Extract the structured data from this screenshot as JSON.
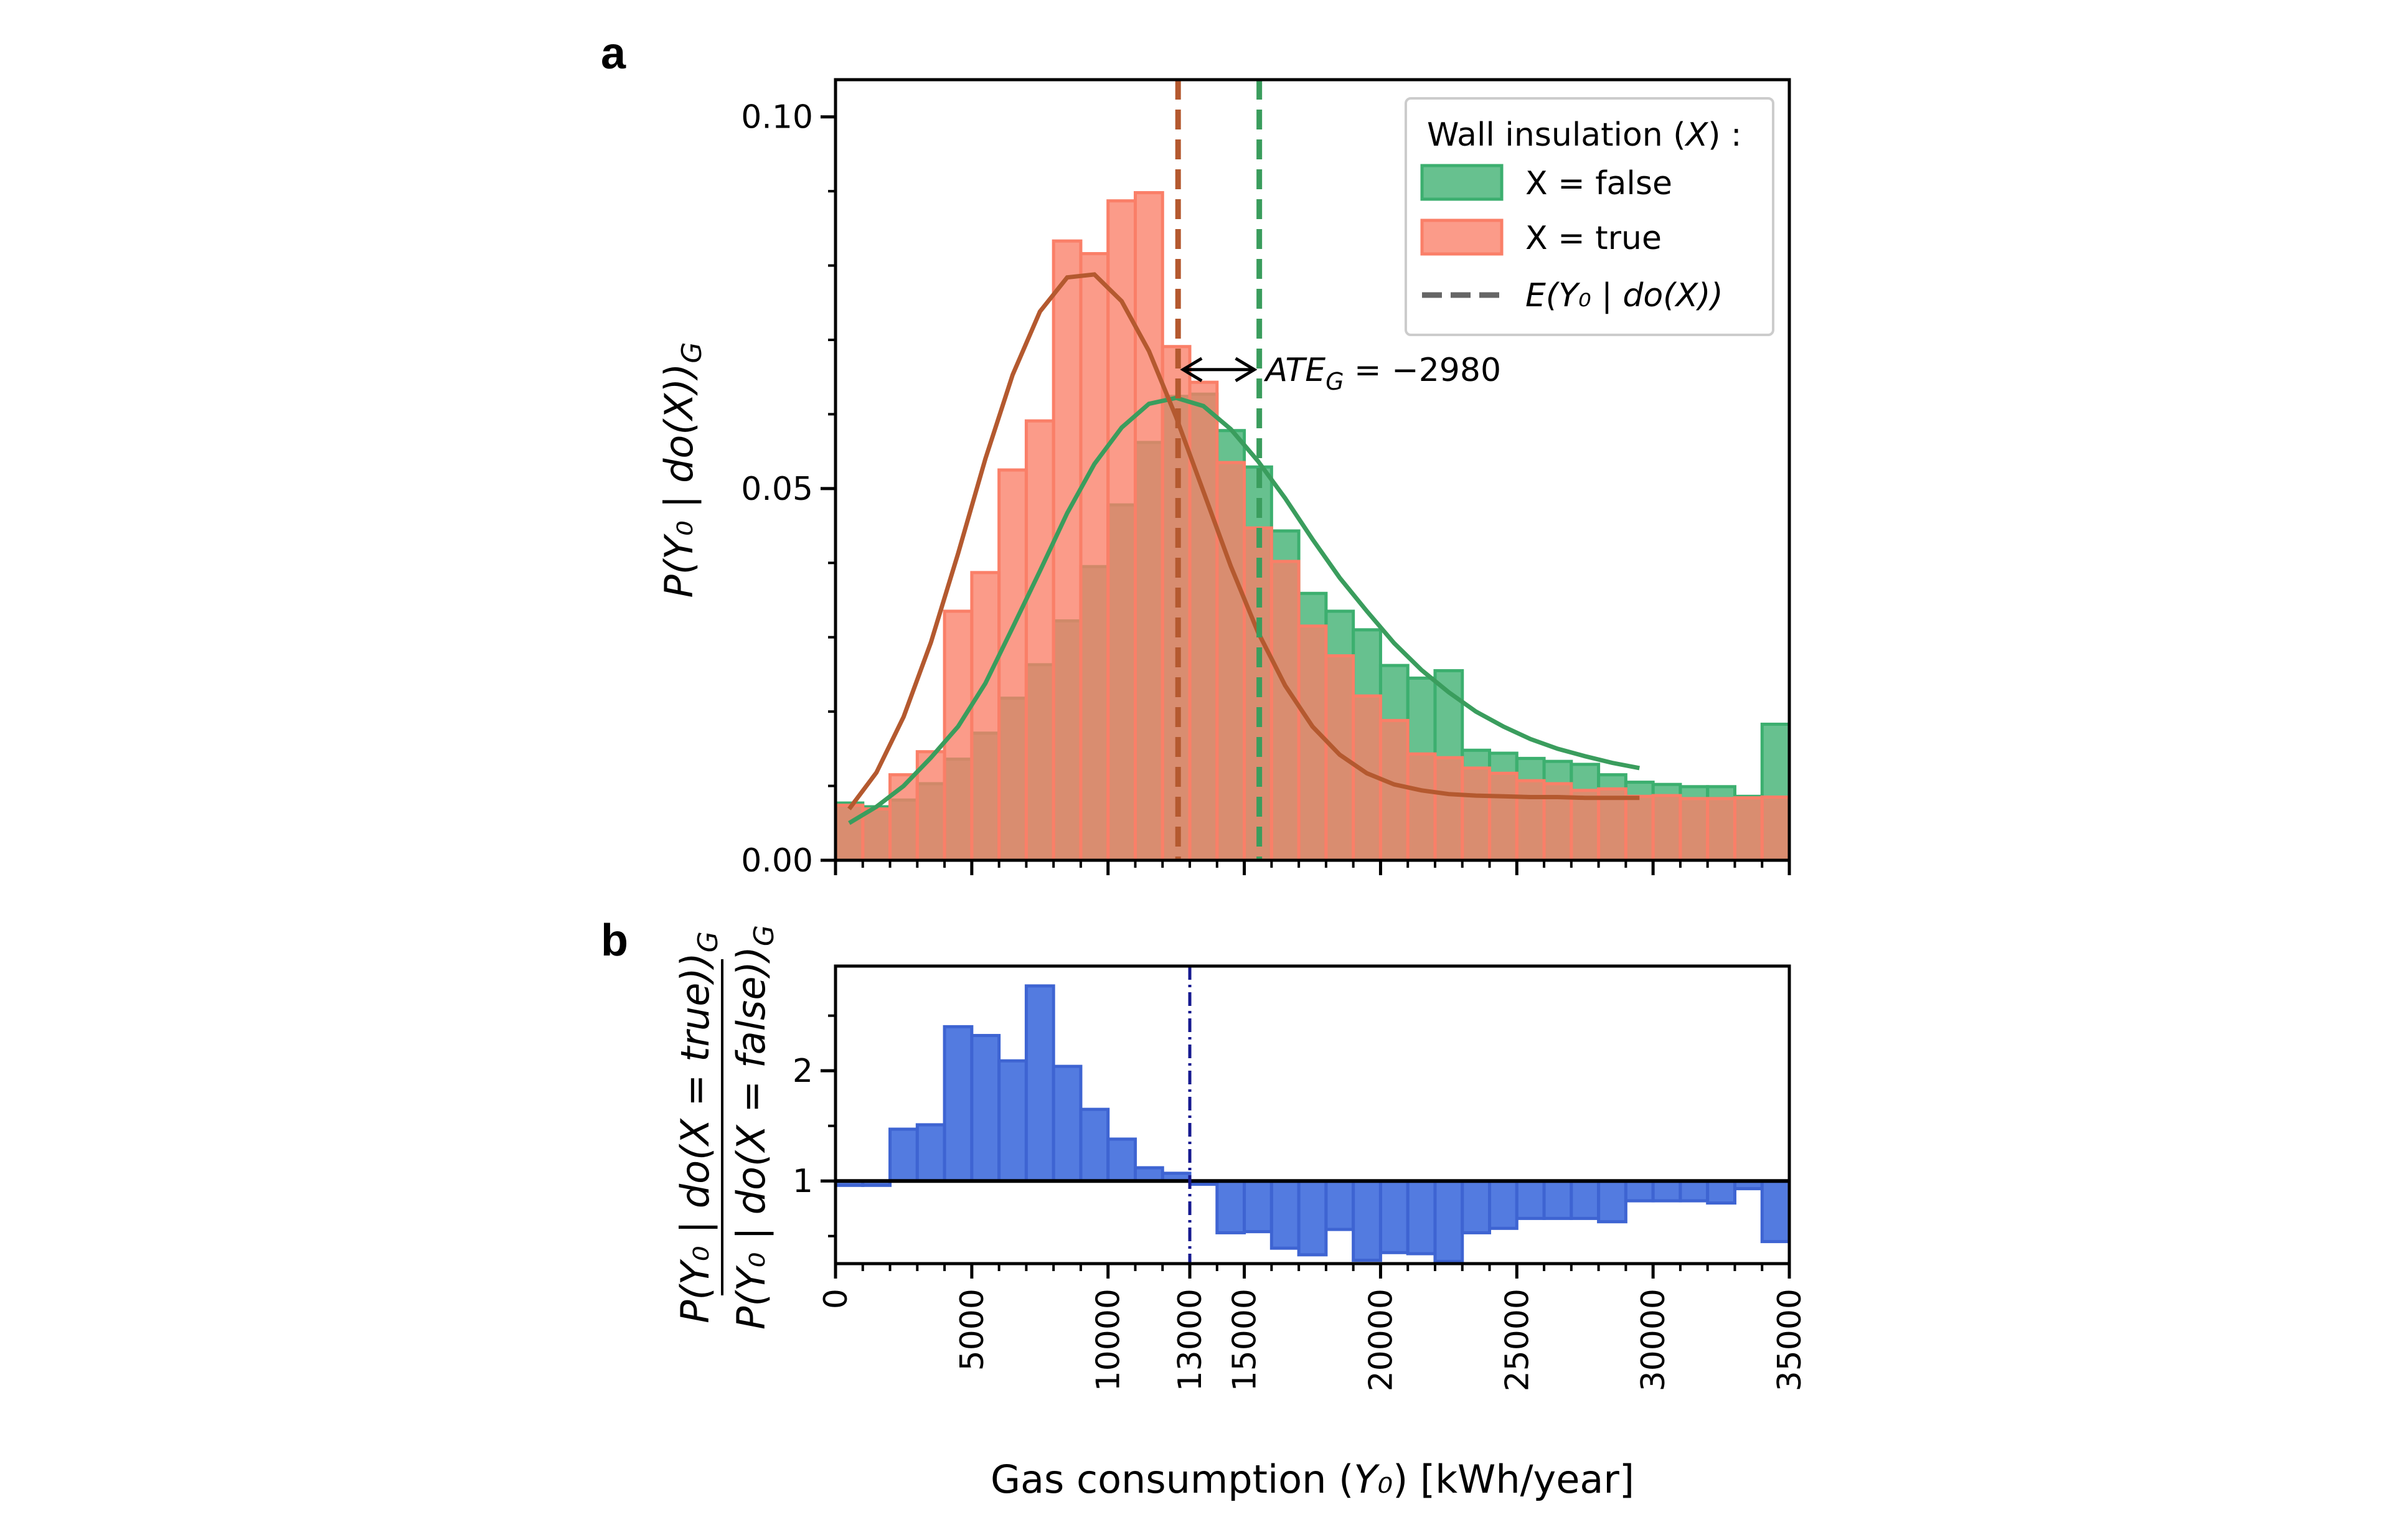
{
  "figure": {
    "panel_a_label": "a",
    "panel_b_label": "b",
    "ate_annotation": {
      "name": "ATE",
      "sub": "G",
      "value": " = −2980"
    }
  },
  "chart_data": [
    {
      "type": "bar",
      "panel": "a",
      "xlim": [
        0,
        35000
      ],
      "ylim": [
        0,
        0.105
      ],
      "yticks": [
        0.0,
        0.05,
        0.1
      ],
      "ytick_labels": [
        "0.00",
        "0.05",
        "0.10"
      ],
      "ylabel": {
        "text": "P(Y₀ | do(X))",
        "sub": "G"
      },
      "bin_width": 1000,
      "bin_start": 0,
      "legend": {
        "placement": "top-right",
        "title": {
          "pre": "Wall insulation (",
          "var": "X",
          "post": ") :"
        },
        "entries": [
          "X = false",
          "X = true",
          "E(Y₀ | do(X))"
        ]
      },
      "colors": {
        "false_fill": "#3caf6f",
        "true_fill": "#fa7f68",
        "false_line": "#3a9d5d",
        "true_line": "#b4592f",
        "mean_legend": "#666666"
      },
      "series": [
        {
          "name": "X = false",
          "values": [
            0.0077,
            0.0072,
            0.0081,
            0.0103,
            0.0136,
            0.0171,
            0.0218,
            0.0263,
            0.0322,
            0.0395,
            0.0478,
            0.0562,
            0.0624,
            0.0627,
            0.0578,
            0.0529,
            0.0443,
            0.0359,
            0.0335,
            0.031,
            0.0262,
            0.0245,
            0.0255,
            0.0148,
            0.0144,
            0.0137,
            0.0133,
            0.0129,
            0.0115,
            0.0105,
            0.0102,
            0.0099,
            0.0099,
            0.0086,
            0.0183
          ],
          "mean": 15550,
          "fit_curve": {
            "x": [
              500,
              1500,
              2500,
              3500,
              4500,
              5500,
              6500,
              7500,
              8500,
              9500,
              10500,
              11500,
              12500,
              13500,
              14500,
              15500,
              16500,
              17500,
              18500,
              19500,
              20500,
              21500,
              22500,
              23500,
              24500,
              25500,
              26500,
              27500,
              28500,
              29500
            ],
            "y": [
              0.005,
              0.0072,
              0.01,
              0.0138,
              0.018,
              0.0238,
              0.0313,
              0.0389,
              0.0467,
              0.0533,
              0.0582,
              0.0614,
              0.0622,
              0.0611,
              0.058,
              0.0537,
              0.0487,
              0.0432,
              0.038,
              0.0335,
              0.0292,
              0.0256,
              0.0226,
              0.02,
              0.018,
              0.0163,
              0.015,
              0.014,
              0.0131,
              0.0124
            ]
          }
        },
        {
          "name": "X = true",
          "values": [
            0.0074,
            0.0069,
            0.0115,
            0.0146,
            0.0335,
            0.0387,
            0.0525,
            0.0591,
            0.0833,
            0.0816,
            0.0887,
            0.0898,
            0.0691,
            0.0643,
            0.0535,
            0.0447,
            0.0402,
            0.0315,
            0.0275,
            0.0221,
            0.0188,
            0.0143,
            0.0138,
            0.0124,
            0.0117,
            0.0107,
            0.0103,
            0.0094,
            0.0096,
            0.0086,
            0.0087,
            0.0083,
            0.0083,
            0.0084,
            0.0085
          ],
          "mean": 12570,
          "fit_curve": {
            "x": [
              500,
              1500,
              2500,
              3500,
              4500,
              5500,
              6500,
              7500,
              8500,
              9500,
              10500,
              11500,
              12500,
              13500,
              14500,
              15500,
              16500,
              17500,
              18500,
              19500,
              20500,
              21500,
              22500,
              23500,
              24500,
              25500,
              26500,
              27500,
              28500,
              29500
            ],
            "y": [
              0.0069,
              0.0118,
              0.0193,
              0.0293,
              0.0413,
              0.054,
              0.0653,
              0.0738,
              0.0784,
              0.0788,
              0.0752,
              0.0685,
              0.0596,
              0.0496,
              0.0396,
              0.0307,
              0.0235,
              0.018,
              0.0142,
              0.0117,
              0.0102,
              0.0094,
              0.0089,
              0.0087,
              0.0086,
              0.0085,
              0.0085,
              0.0084,
              0.0084,
              0.0084
            ]
          }
        }
      ]
    },
    {
      "type": "bar",
      "panel": "b",
      "xlim": [
        0,
        35000
      ],
      "ylim": [
        0.25,
        2.95
      ],
      "yticks": [
        1,
        2
      ],
      "ytick_labels": [
        "1",
        "2"
      ],
      "baseline": 1,
      "vline_x": 13000,
      "ylabel": {
        "num": "P(Y₀ | do(X = true))",
        "num_sub": "G",
        "den": "P(Y₀ | do(X = false))",
        "den_sub": "G"
      },
      "xticks": [
        0,
        5000,
        10000,
        13000,
        15000,
        20000,
        25000,
        30000,
        35000
      ],
      "xtick_labels": [
        "0",
        "5000",
        "10000",
        "13000",
        "15000",
        "20000",
        "25000",
        "30000",
        "35000"
      ],
      "xlabel": {
        "pre": "Gas consumption (",
        "var": "Y₀",
        "post": ") [kWh/year]"
      },
      "bin_width": 1000,
      "bin_start": 0,
      "colors": {
        "fill": "#4a74de",
        "edge": "#3e64d2",
        "vline": "#16198f",
        "baseline": "#000000"
      },
      "values": [
        0.96,
        0.96,
        1.47,
        1.51,
        2.4,
        2.32,
        2.09,
        2.77,
        2.04,
        1.65,
        1.38,
        1.12,
        1.07,
        0.97,
        0.53,
        0.54,
        0.39,
        0.33,
        0.56,
        0.28,
        0.35,
        0.34,
        0.27,
        0.53,
        0.57,
        0.66,
        0.66,
        0.66,
        0.63,
        0.82,
        0.82,
        0.82,
        0.8,
        0.93,
        0.45
      ]
    }
  ]
}
